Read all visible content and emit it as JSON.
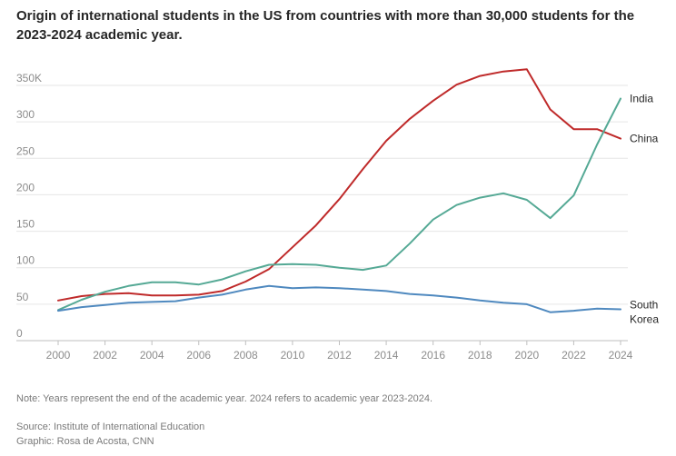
{
  "title": "Origin of international students in the US from countries with more than 30,000 students for the 2023-2024 academic year.",
  "note": "Note: Years represent the end of the academic year. 2024 refers to academic year 2023-2024.",
  "source": "Source: Institute of International Education",
  "credit": "Graphic: Rosa de Acosta, CNN",
  "colors": {
    "India": "#55a995",
    "China": "#bf2a2a",
    "South Korea": "#4f89bf",
    "grid": "#e6e6e6",
    "tick": "#8c8c8c"
  },
  "chart_data": {
    "type": "line",
    "x": [
      2000,
      2001,
      2002,
      2003,
      2004,
      2005,
      2006,
      2007,
      2008,
      2009,
      2010,
      2011,
      2012,
      2013,
      2014,
      2015,
      2016,
      2017,
      2018,
      2019,
      2020,
      2021,
      2022,
      2023,
      2024
    ],
    "series": [
      {
        "name": "China",
        "label_lines": [
          "China"
        ],
        "values": [
          55,
          61,
          64,
          65,
          62,
          62,
          63,
          68,
          81,
          98,
          128,
          158,
          194,
          235,
          274,
          304,
          329,
          351,
          363,
          369,
          372,
          317,
          290,
          290,
          277
        ]
      },
      {
        "name": "India",
        "label_lines": [
          "India"
        ],
        "values": [
          42,
          56,
          67,
          75,
          80,
          80,
          77,
          84,
          95,
          104,
          105,
          104,
          100,
          97,
          103,
          133,
          166,
          186,
          196,
          202,
          193,
          168,
          199,
          269,
          332
        ]
      },
      {
        "name": "South Korea",
        "label_lines": [
          "South",
          "Korea"
        ],
        "values": [
          41,
          46,
          49,
          52,
          53,
          54,
          59,
          63,
          70,
          75,
          72,
          73,
          72,
          70,
          68,
          64,
          62,
          59,
          55,
          52,
          50,
          39,
          41,
          44,
          43
        ]
      }
    ],
    "xticks": [
      2000,
      2002,
      2004,
      2006,
      2008,
      2010,
      2012,
      2014,
      2016,
      2018,
      2020,
      2022,
      2024
    ],
    "yticks": [
      0,
      50,
      100,
      150,
      200,
      250,
      300,
      350
    ],
    "ytick_labels": [
      "0",
      "50",
      "100",
      "150",
      "200",
      "250",
      "300",
      "350K"
    ],
    "ylim": [
      0,
      350
    ],
    "xlim": [
      2000,
      2024
    ],
    "grid": true,
    "legend": "inline-right"
  }
}
